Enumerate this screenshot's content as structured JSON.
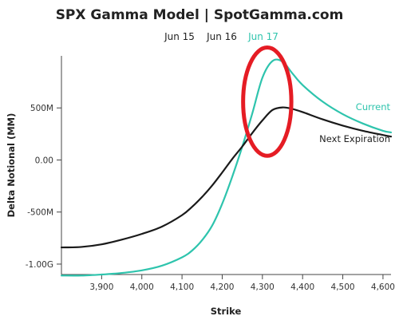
{
  "chart_data": {
    "type": "line",
    "title": "SPX Gamma Model | SpotGamma.com",
    "tabs": [
      {
        "label": "Jun 15",
        "active": false
      },
      {
        "label": "Jun 16",
        "active": false
      },
      {
        "label": "Jun 17",
        "active": true
      }
    ],
    "xlabel": "Strike",
    "ylabel": "Delta Notional (MM)",
    "xlim": [
      3800,
      4620
    ],
    "ylim": [
      -1100,
      1000
    ],
    "x_ticks": [
      {
        "value": 3900,
        "label": "3,900"
      },
      {
        "value": 4000,
        "label": "4,000"
      },
      {
        "value": 4100,
        "label": "4,100"
      },
      {
        "value": 4200,
        "label": "4,200"
      },
      {
        "value": 4300,
        "label": "4,300"
      },
      {
        "value": 4400,
        "label": "4,400"
      },
      {
        "value": 4500,
        "label": "4,500"
      },
      {
        "value": 4600,
        "label": "4,600"
      }
    ],
    "y_ticks": [
      {
        "value": 500,
        "label": "500M"
      },
      {
        "value": 0,
        "label": "0.00"
      },
      {
        "value": -500,
        "label": "-500M"
      },
      {
        "value": -1000,
        "label": "-1.00G"
      }
    ],
    "series": [
      {
        "name": "Current",
        "color": "#2ec4ad",
        "x": [
          3800,
          3850,
          3900,
          3950,
          4000,
          4050,
          4100,
          4125,
          4150,
          4175,
          4200,
          4225,
          4250,
          4275,
          4300,
          4325,
          4350,
          4375,
          4400,
          4450,
          4500,
          4550,
          4600,
          4620
        ],
        "y": [
          -1110,
          -1110,
          -1100,
          -1085,
          -1060,
          -1015,
          -935,
          -870,
          -770,
          -630,
          -420,
          -160,
          130,
          450,
          790,
          950,
          945,
          830,
          720,
          560,
          440,
          350,
          280,
          265
        ]
      },
      {
        "name": "Next Expiration",
        "color": "#1a1a1a",
        "x": [
          3800,
          3850,
          3900,
          3950,
          4000,
          4050,
          4100,
          4125,
          4150,
          4175,
          4200,
          4225,
          4250,
          4275,
          4300,
          4325,
          4350,
          4375,
          4400,
          4450,
          4500,
          4550,
          4600,
          4620
        ],
        "y": [
          -840,
          -835,
          -810,
          -765,
          -710,
          -640,
          -530,
          -450,
          -355,
          -245,
          -120,
          10,
          130,
          260,
          380,
          480,
          505,
          490,
          460,
          390,
          330,
          280,
          240,
          225
        ]
      }
    ],
    "annotation": {
      "type": "circle",
      "color": "#e51c24",
      "center_x": 4312,
      "center_y": 560,
      "radius_x": 60,
      "radius_y": 520
    }
  }
}
